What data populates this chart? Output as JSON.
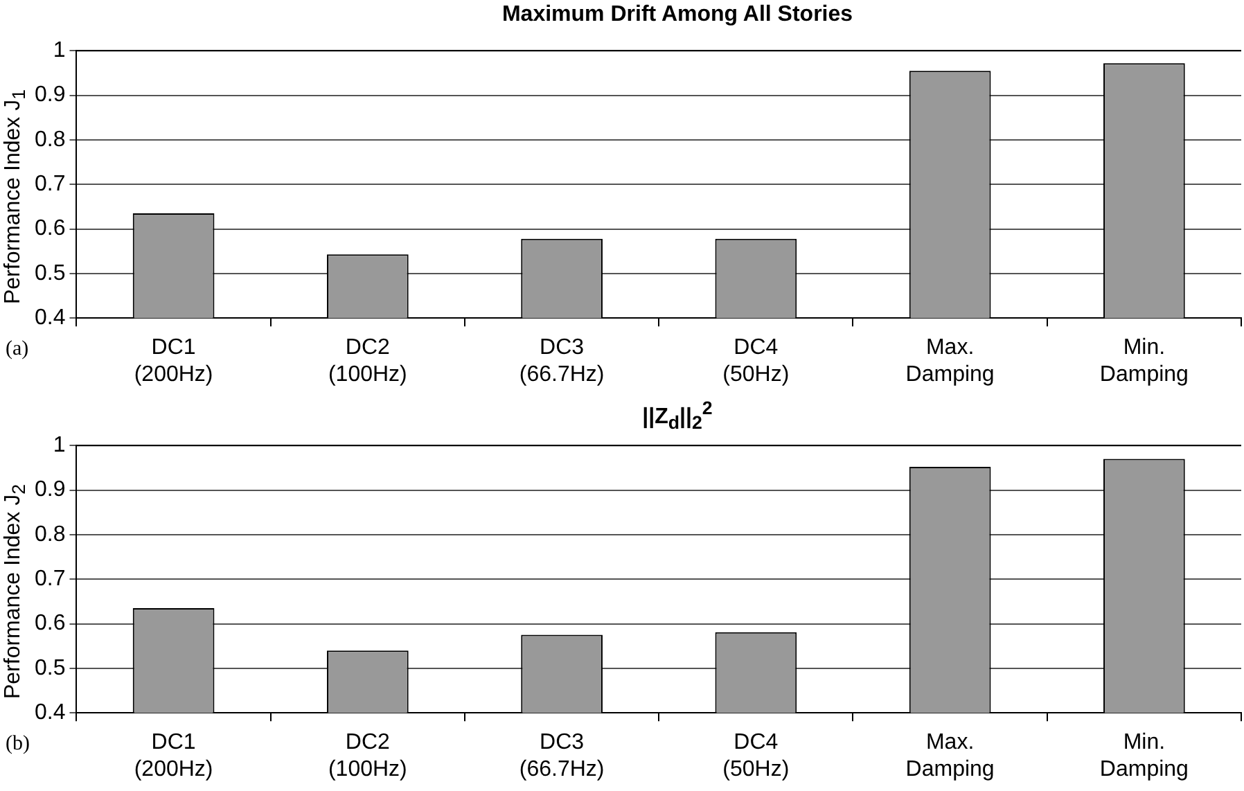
{
  "chart_data": [
    {
      "type": "bar",
      "title": "Maximum Drift Among All Stories",
      "ylabel": "Performance Index J$_{1}$",
      "annotations": [
        "(a)"
      ],
      "categories": [
        "DC1\n(200Hz)",
        "DC2\n(100Hz)",
        "DC3\n(66.7Hz)",
        "DC4\n(50Hz)",
        "Max.\nDamping",
        "Min.\nDamping"
      ],
      "values": [
        0.635,
        0.543,
        0.578,
        0.578,
        0.955,
        0.972
      ],
      "color": "#999999",
      "ylim": [
        0.4,
        1
      ],
      "yticks": [
        0.4,
        0.5,
        0.6,
        0.7,
        0.8,
        0.9,
        1
      ],
      "grid": "y",
      "legend": false
    },
    {
      "type": "bar",
      "title": "||Z$_{d}$||$_{2}$$^{2}$",
      "ylabel": "Performance Index J$_{2}$",
      "annotations": [
        "(b)"
      ],
      "categories": [
        "DC1\n(200Hz)",
        "DC2\n(100Hz)",
        "DC3\n(66.7Hz)",
        "DC4\n(50Hz)",
        "Max.\nDamping",
        "Min.\nDamping"
      ],
      "values": [
        0.635,
        0.54,
        0.575,
        0.581,
        0.952,
        0.97
      ],
      "color": "#999999",
      "ylim": [
        0.4,
        1
      ],
      "yticks": [
        0.4,
        0.5,
        0.6,
        0.7,
        0.8,
        0.9,
        1
      ],
      "grid": "y",
      "legend": false
    }
  ]
}
